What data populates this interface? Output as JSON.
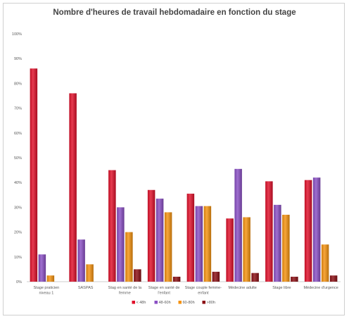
{
  "chart_data": {
    "type": "bar",
    "title": "Nombre d'heures de travail hebdomadaire en fonction du stage",
    "xlabel": "",
    "ylabel": "",
    "ylim": [
      0,
      100
    ],
    "y_ticks": [
      "0%",
      "10%",
      "20%",
      "30%",
      "40%",
      "50%",
      "60%",
      "70%",
      "80%",
      "90%",
      "100%"
    ],
    "grid": false,
    "legend_position": "bottom",
    "categories": [
      [
        "Stage praticien",
        "niveau 1"
      ],
      [
        "SASPAS"
      ],
      [
        "Stag en santé de la",
        "femme"
      ],
      [
        "Stage en santé de",
        "l'enfant"
      ],
      [
        "Stage couple femme-",
        "enfant"
      ],
      [
        "Médecine adulte"
      ],
      [
        "Stage libre"
      ],
      [
        "Médecine d'urgence"
      ]
    ],
    "series": [
      {
        "name": "< 48h",
        "color": "#e0102a",
        "values": [
          86,
          76,
          45,
          37,
          35.5,
          25.5,
          40.5,
          41
        ]
      },
      {
        "name": "48-60h",
        "color": "#8a4fc4",
        "values": [
          11,
          17,
          30,
          33.5,
          30.5,
          45.5,
          31,
          42
        ]
      },
      {
        "name": "60-80h",
        "color": "#f5920f",
        "values": [
          2.5,
          7,
          20,
          28,
          30.5,
          26,
          27,
          15
        ]
      },
      {
        "name": ">80h",
        "color": "#8b0f14",
        "values": [
          0,
          0,
          5,
          2,
          4,
          3.5,
          2,
          2.5
        ]
      }
    ]
  }
}
